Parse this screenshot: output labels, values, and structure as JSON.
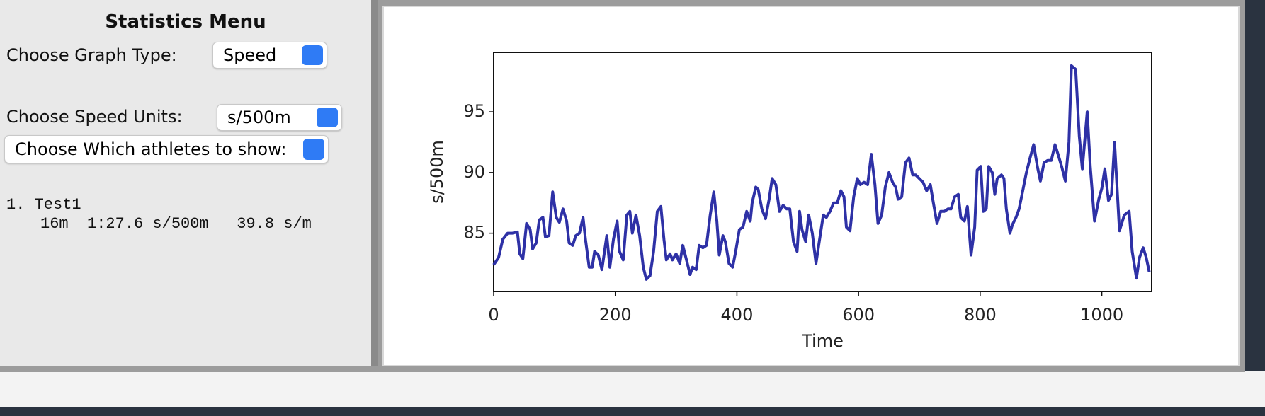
{
  "menu": {
    "title": "Statistics Menu",
    "graph_type_label": "Choose Graph Type:",
    "graph_type": "Speed",
    "units_label": "Choose Speed Units:",
    "units": "s/500m",
    "athletes_select": "Choose Which athletes to show:",
    "athletes": [
      {
        "line1": "1. Test1",
        "line2": "16m  1:27.6 s/500m   39.8 s/m"
      }
    ]
  },
  "chart_data": {
    "type": "line",
    "xlabel": "Time",
    "ylabel": "s/500m",
    "color": "#2e31a6",
    "xlim": [
      0,
      1082
    ],
    "ylim": [
      80.2,
      99.9
    ],
    "xticks": [
      0,
      200,
      400,
      600,
      800,
      1000
    ],
    "yticks": [
      85,
      90,
      95
    ],
    "x": [
      0,
      8,
      15,
      23,
      31,
      39,
      43,
      48,
      54,
      60,
      64,
      70,
      75,
      81,
      85,
      91,
      97,
      103,
      108,
      114,
      120,
      124,
      130,
      135,
      141,
      147,
      151,
      157,
      162,
      166,
      172,
      178,
      186,
      191,
      197,
      203,
      207,
      213,
      219,
      224,
      228,
      234,
      240,
      246,
      251,
      257,
      263,
      269,
      275,
      280,
      284,
      290,
      294,
      300,
      306,
      311,
      317,
      323,
      327,
      333,
      338,
      344,
      350,
      356,
      362,
      367,
      371,
      377,
      381,
      387,
      393,
      398,
      404,
      410,
      416,
      422,
      425,
      431,
      435,
      441,
      447,
      453,
      458,
      464,
      470,
      476,
      482,
      487,
      493,
      499,
      503,
      507,
      513,
      518,
      524,
      530,
      536,
      542,
      547,
      553,
      559,
      565,
      571,
      576,
      580,
      586,
      592,
      598,
      603,
      609,
      615,
      621,
      627,
      632,
      638,
      644,
      650,
      656,
      661,
      665,
      671,
      677,
      683,
      689,
      694,
      700,
      706,
      712,
      718,
      723,
      729,
      735,
      741,
      747,
      752,
      758,
      764,
      768,
      774,
      779,
      785,
      791,
      795,
      801,
      805,
      810,
      814,
      820,
      824,
      828,
      835,
      839,
      843,
      849,
      853,
      859,
      864,
      870,
      876,
      882,
      888,
      894,
      899,
      905,
      911,
      917,
      923,
      928,
      934,
      940,
      946,
      950,
      957,
      963,
      968,
      976,
      981,
      988,
      995,
      1000,
      1005,
      1011,
      1016,
      1021,
      1029,
      1037,
      1045,
      1050,
      1057,
      1062,
      1068,
      1073,
      1078
    ],
    "values": [
      82.4,
      83,
      84.5,
      85,
      85,
      85.1,
      83.3,
      82.9,
      85.8,
      85.3,
      83.7,
      84.2,
      86.1,
      86.3,
      84.7,
      84.8,
      88.4,
      86.3,
      85.9,
      87,
      86,
      84.2,
      84,
      84.8,
      85,
      86.3,
      84.5,
      82.2,
      82.2,
      83.5,
      83.2,
      82,
      84.8,
      82.2,
      84.5,
      86,
      83.5,
      82.8,
      86.5,
      86.8,
      85,
      86.5,
      84.8,
      82.2,
      81.2,
      81.5,
      83.5,
      86.8,
      87.2,
      84.5,
      82.8,
      83.3,
      82.8,
      83.3,
      82.5,
      84,
      82.8,
      81.6,
      82.2,
      82,
      84,
      83.8,
      84,
      86.5,
      88.4,
      86,
      83.2,
      84.8,
      84.3,
      82.5,
      82.2,
      83.5,
      85.3,
      85.5,
      86.8,
      86,
      87.5,
      88.8,
      88.6,
      87,
      86.2,
      87.8,
      89.5,
      89,
      86.8,
      87.3,
      87,
      87,
      84.3,
      83.5,
      86.8,
      85.3,
      84.3,
      86.5,
      85,
      82.5,
      84.5,
      86.5,
      86.3,
      86.8,
      87.5,
      87.5,
      88.5,
      88,
      85.5,
      85.2,
      88,
      89.5,
      89,
      89.2,
      89,
      91.5,
      89,
      85.8,
      86.5,
      88.8,
      90,
      89.2,
      88.8,
      87.8,
      88,
      90.8,
      91.2,
      89.8,
      89.8,
      89.5,
      89.2,
      88.5,
      89,
      87.5,
      85.8,
      86.8,
      86.8,
      87,
      87,
      88,
      88.2,
      86.3,
      86,
      87.2,
      83.2,
      85.5,
      90.2,
      90.5,
      86.8,
      87,
      90.5,
      90,
      88.2,
      89.5,
      89.8,
      89.5,
      87,
      85,
      85.7,
      86.3,
      87,
      88.5,
      90,
      91.2,
      92.3,
      90.5,
      89.3,
      90.8,
      91,
      91,
      92.3,
      91.5,
      90.5,
      89.3,
      92.5,
      98.8,
      98.5,
      93,
      90.3,
      95,
      90.5,
      86,
      87.8,
      88.7,
      90.3,
      87.7,
      88.2,
      92.5,
      85.2,
      86.5,
      86.8,
      83.5,
      81.3,
      83,
      83.8,
      83,
      81.8
    ]
  }
}
